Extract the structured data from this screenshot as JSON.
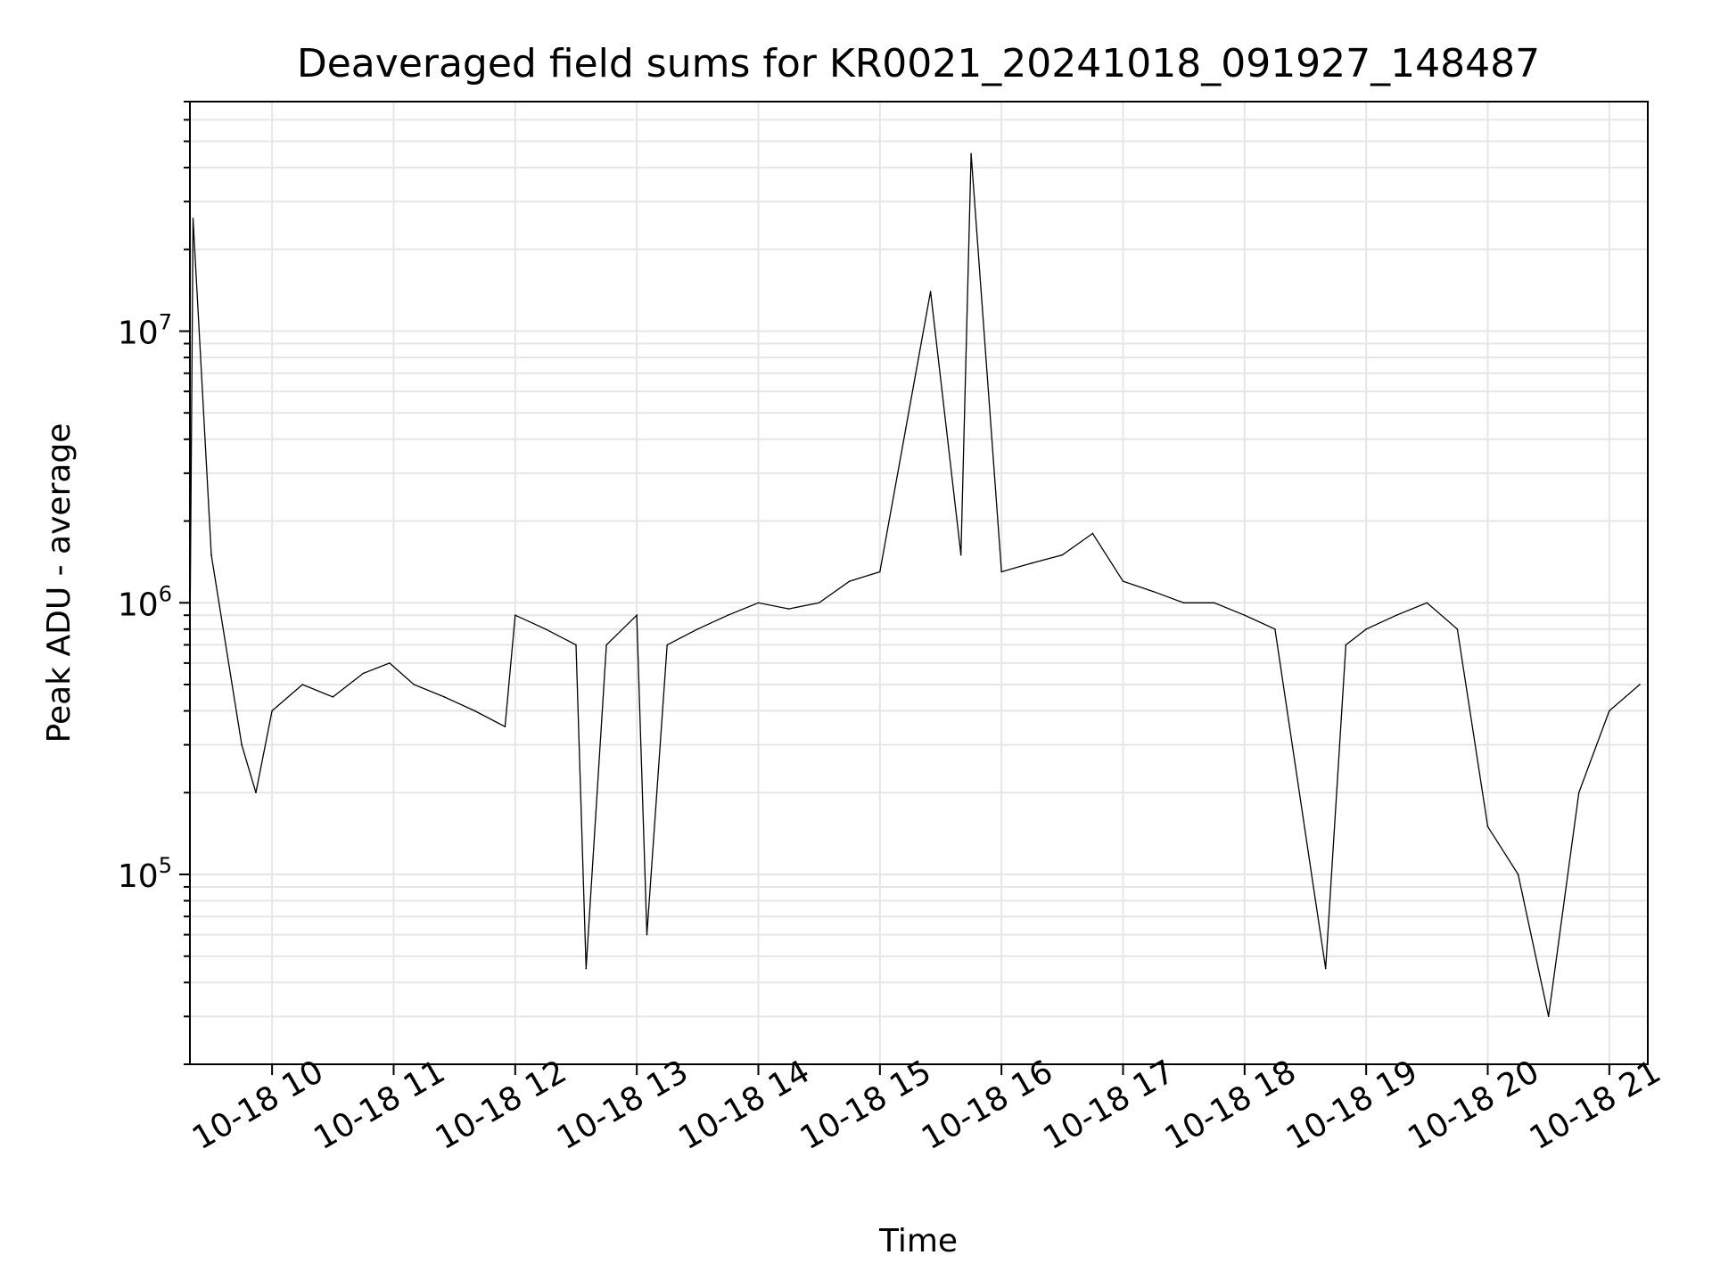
{
  "chart_data": {
    "type": "line",
    "title": "Deaveraged field sums for KR0021_20241018_091927_148487",
    "xlabel": "Time",
    "ylabel": "Peak ADU - average",
    "yscale": "log",
    "ylim": [
      20000,
      70000000
    ],
    "xlim": [
      "2024-10-18 09:19:27",
      "2024-10-18 21:19:00"
    ],
    "x_ticks": [
      "10-18 10",
      "10-18 11",
      "10-18 12",
      "10-18 13",
      "10-18 14",
      "10-18 15",
      "10-18 16",
      "10-18 17",
      "10-18 18",
      "10-18 19",
      "10-18 20",
      "10-18 21"
    ],
    "y_ticks": [
      {
        "base": "10",
        "exp": "5",
        "value": 100000
      },
      {
        "base": "10",
        "exp": "6",
        "value": 1000000
      },
      {
        "base": "10",
        "exp": "7",
        "value": 10000000
      }
    ],
    "grid": true,
    "colors": {
      "series": "#000000",
      "grid": "#e6e6e6"
    },
    "series": [
      {
        "x": [
          "2024-10-18 09:19:30",
          "2024-10-18 09:21:00",
          "2024-10-18 09:30:00",
          "2024-10-18 09:45:00",
          "2024-10-18 09:52:00",
          "2024-10-18 10:00:00",
          "2024-10-18 10:15:00",
          "2024-10-18 10:30:00",
          "2024-10-18 10:45:00",
          "2024-10-18 10:58:00",
          "2024-10-18 11:10:00",
          "2024-10-18 11:25:00",
          "2024-10-18 11:40:00",
          "2024-10-18 11:55:00",
          "2024-10-18 12:00:00",
          "2024-10-18 12:15:00",
          "2024-10-18 12:30:00",
          "2024-10-18 12:35:00",
          "2024-10-18 12:45:00",
          "2024-10-18 13:00:00",
          "2024-10-18 13:05:00",
          "2024-10-18 13:15:00",
          "2024-10-18 13:30:00",
          "2024-10-18 13:45:00",
          "2024-10-18 14:00:00",
          "2024-10-18 14:15:00",
          "2024-10-18 14:30:00",
          "2024-10-18 14:45:00",
          "2024-10-18 15:00:00",
          "2024-10-18 15:25:00",
          "2024-10-18 15:40:00",
          "2024-10-18 15:45:00",
          "2024-10-18 16:00:00",
          "2024-10-18 16:15:00",
          "2024-10-18 16:30:00",
          "2024-10-18 16:45:00",
          "2024-10-18 17:00:00",
          "2024-10-18 17:15:00",
          "2024-10-18 17:30:00",
          "2024-10-18 17:45:00",
          "2024-10-18 18:00:00",
          "2024-10-18 18:15:00",
          "2024-10-18 18:40:00",
          "2024-10-18 18:50:00",
          "2024-10-18 19:00:00",
          "2024-10-18 19:15:00",
          "2024-10-18 19:30:00",
          "2024-10-18 19:45:00",
          "2024-10-18 20:00:00",
          "2024-10-18 20:15:00",
          "2024-10-18 20:30:00",
          "2024-10-18 20:45:00",
          "2024-10-18 21:00:00",
          "2024-10-18 21:15:00"
        ],
        "y": [
          800000,
          26000000,
          1500000,
          300000,
          200000,
          400000,
          500000,
          450000,
          550000,
          600000,
          500000,
          450000,
          400000,
          350000,
          900000,
          800000,
          700000,
          45000,
          700000,
          900000,
          60000,
          700000,
          800000,
          900000,
          1000000,
          950000,
          1000000,
          1200000,
          1300000,
          14000000,
          1500000,
          45000000,
          1300000,
          1400000,
          1500000,
          1800000,
          1200000,
          1100000,
          1000000,
          1000000,
          900000,
          800000,
          45000,
          700000,
          800000,
          900000,
          1000000,
          800000,
          150000,
          100000,
          30000,
          200000,
          400000,
          500000
        ]
      }
    ]
  }
}
